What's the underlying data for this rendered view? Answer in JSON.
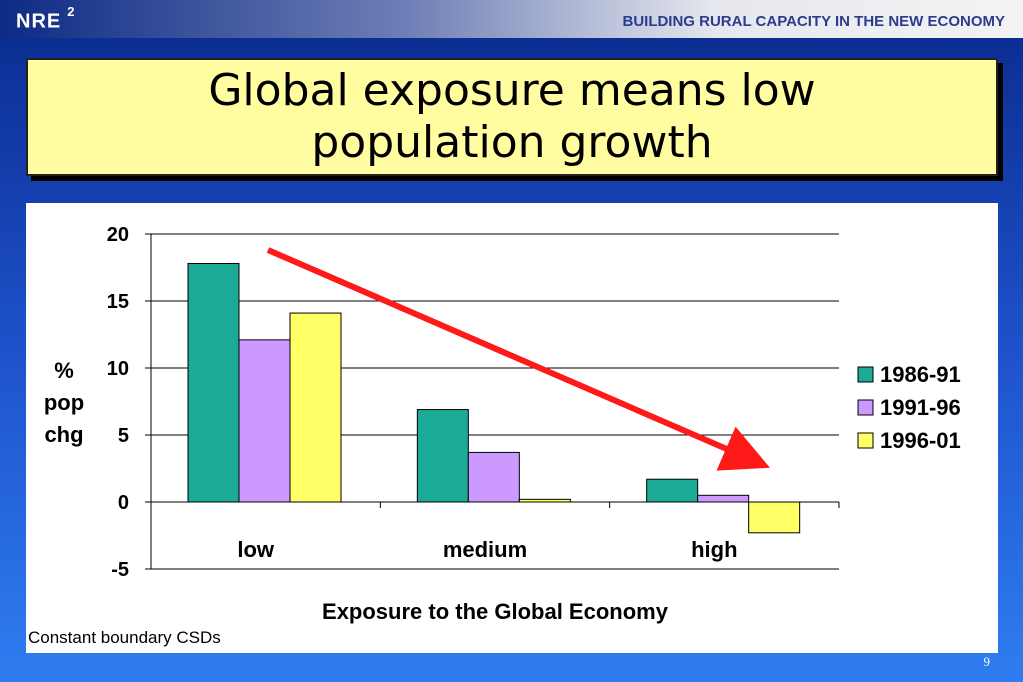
{
  "header": {
    "logo": "NRE",
    "logo_sup": "2",
    "tagline": "BUILDING RURAL CAPACITY IN THE NEW ECONOMY"
  },
  "slide": {
    "title": "Global exposure means low population growth",
    "footnote": "Constant boundary CSDs",
    "page_number": "9"
  },
  "chart_data": {
    "type": "bar",
    "categories": [
      "low",
      "medium",
      "high"
    ],
    "series": [
      {
        "name": "1986-91",
        "values": [
          17.8,
          6.9,
          1.7
        ],
        "color": "#1aaa96"
      },
      {
        "name": "1991-96",
        "values": [
          12.1,
          3.7,
          0.5
        ],
        "color": "#cc99ff"
      },
      {
        "name": "1996-01",
        "values": [
          14.1,
          0.2,
          -2.3
        ],
        "color": "#ffff66"
      }
    ],
    "ylabel": [
      "%",
      "pop",
      "chg"
    ],
    "xlabel": "Exposure to the Global Economy",
    "ylim": [
      -5,
      20
    ],
    "yticks": [
      -5,
      0,
      5,
      10,
      15,
      20
    ],
    "grid": true,
    "legend_position": "right",
    "annotation": "red trend arrow pointing down-right",
    "arrow_color": "#ff1a1a"
  }
}
